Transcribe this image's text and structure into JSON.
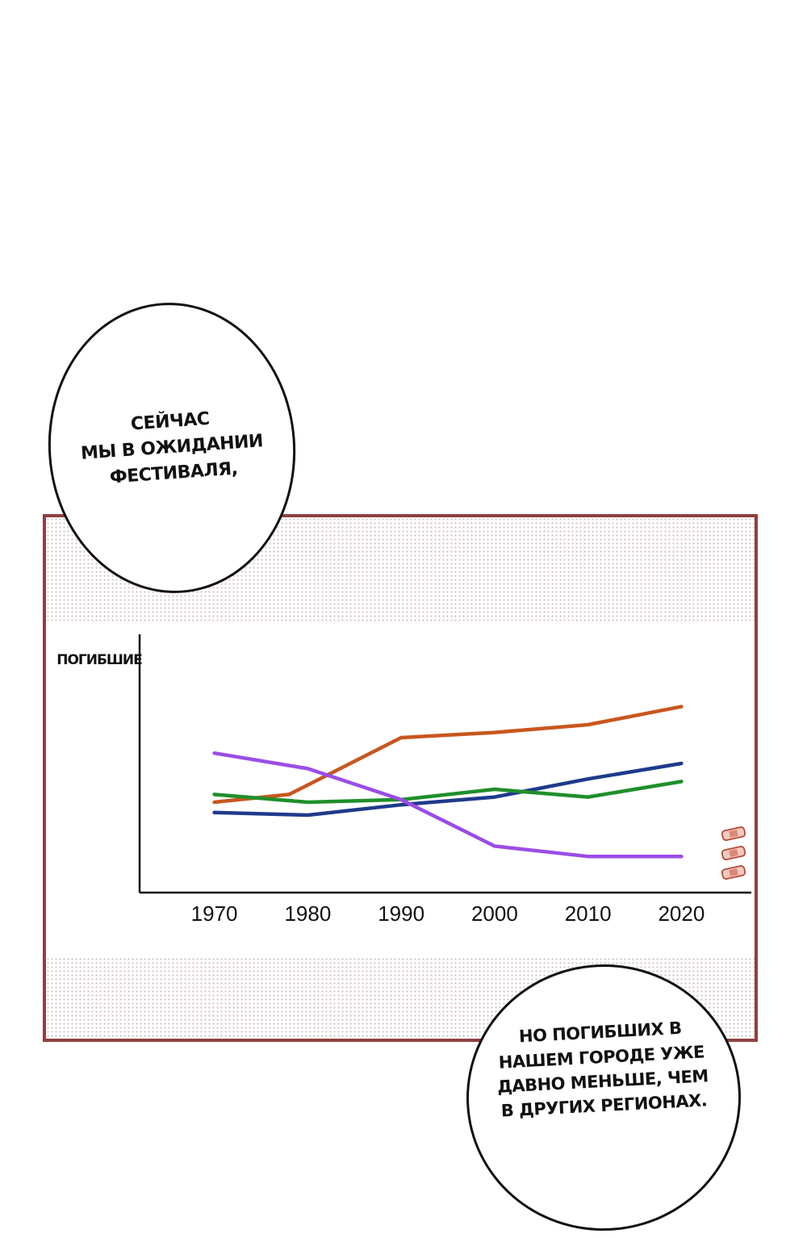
{
  "speech_top": {
    "text": "СЕЙЧАС\nМЫ В ОЖИДАНИИ\nФЕСТИВАЛЯ,"
  },
  "speech_bottom": {
    "text": "НО ПОГИБШИХ В\nНАШЕМ ГОРОДЕ УЖЕ\nДАВНО МЕНЬШЕ, ЧЕМ\nВ ДРУГИХ РЕГИОНАХ."
  },
  "colors": {
    "frame": "#8f4040",
    "orange": "#c9561e",
    "blue": "#1f3a8c",
    "green": "#1f8f2a",
    "purple": "#9b4de6"
  },
  "chart_data": {
    "type": "line",
    "ylabel": "ПОГИБШИЕ",
    "xlabel": "",
    "x": [
      1970,
      1980,
      1990,
      2000,
      2010,
      2020
    ],
    "x_tick_labels": [
      "1970",
      "1980",
      "1990",
      "2000",
      "2010",
      "2020"
    ],
    "xlim": [
      1962,
      2028
    ],
    "ylim": [
      0,
      100
    ],
    "grid": false,
    "series": [
      {
        "color": "#c9561e",
        "points": [
          [
            1970,
            35
          ],
          [
            1978,
            38
          ],
          [
            1990,
            60
          ],
          [
            2000,
            62
          ],
          [
            2010,
            65
          ],
          [
            2020,
            72
          ]
        ]
      },
      {
        "color": "#1f3a8c",
        "points": [
          [
            1970,
            31
          ],
          [
            1980,
            30
          ],
          [
            1990,
            34
          ],
          [
            2000,
            37
          ],
          [
            2010,
            44
          ],
          [
            2020,
            50
          ]
        ]
      },
      {
        "color": "#1f8f2a",
        "points": [
          [
            1970,
            38
          ],
          [
            1980,
            35
          ],
          [
            1990,
            36
          ],
          [
            2000,
            40
          ],
          [
            2010,
            37
          ],
          [
            2020,
            43
          ]
        ]
      },
      {
        "color": "#9b4de6",
        "points": [
          [
            1970,
            54
          ],
          [
            1980,
            48
          ],
          [
            1990,
            36
          ],
          [
            2000,
            18
          ],
          [
            2010,
            14
          ],
          [
            2020,
            14
          ]
        ]
      }
    ]
  }
}
